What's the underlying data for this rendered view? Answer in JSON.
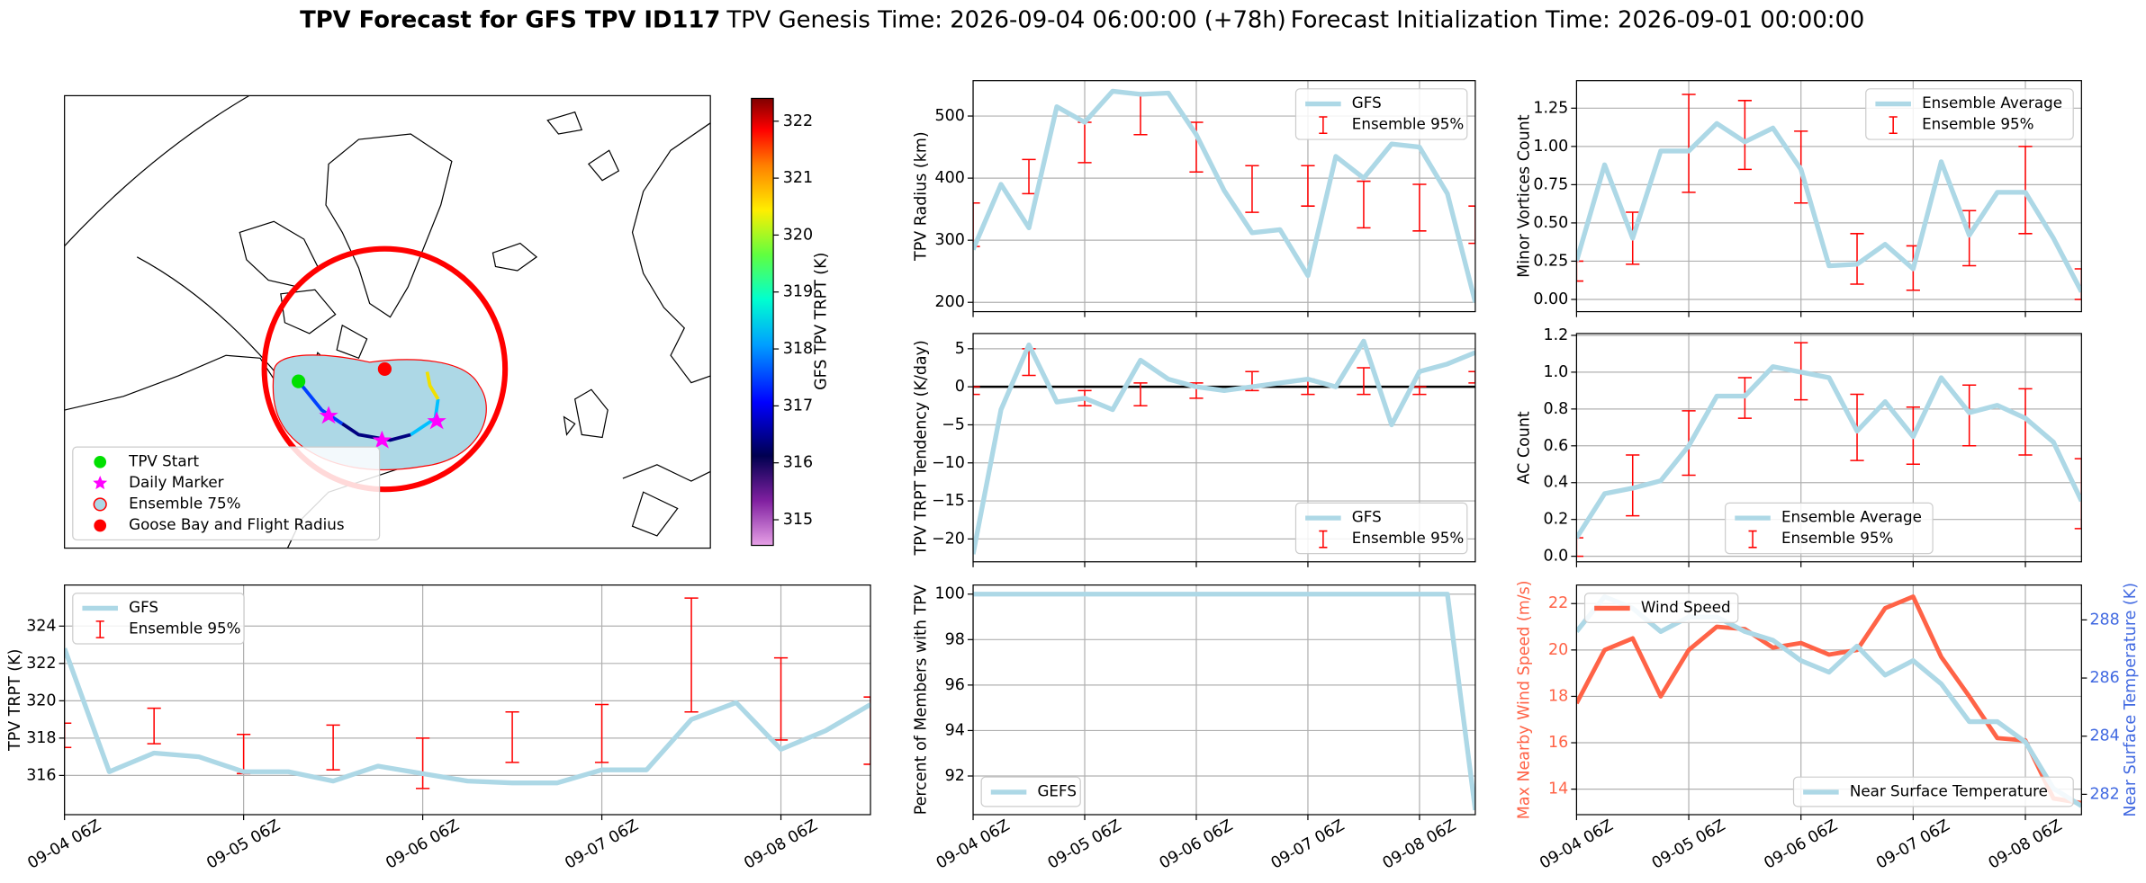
{
  "header": {
    "title": "TPV Forecast for GFS TPV ID117",
    "genesis": "TPV Genesis Time: 2026-09-04 06:00:00 (+78h)",
    "init": "Forecast Initialization Time: 2026-09-01 00:00:00"
  },
  "chart_data": [
    {
      "type": "map",
      "legend_corner": "lower left",
      "legend": [
        {
          "name": "TPV Start",
          "color": "#00e000",
          "marker": "circle"
        },
        {
          "name": "Daily Marker",
          "color": "#ff00ff",
          "marker": "star"
        },
        {
          "name": "Ensemble 75%",
          "color": "#add8e6",
          "edgecolor": "#ff0000",
          "marker": "circle"
        },
        {
          "name": "Goose Bay and Flight Radius",
          "color": "#ff0000",
          "marker": "circle"
        }
      ],
      "colorbar": {
        "label": "GFS TPV TRPT (K)",
        "lim": [
          314.55,
          322.4
        ],
        "ticks": [
          315,
          316,
          317,
          318,
          319,
          320,
          321,
          322
        ]
      }
    },
    {
      "type": "line",
      "ylabel": "TPV Radius (km)",
      "ylim": [
        185,
        557
      ],
      "yticks": [
        200,
        300,
        400,
        500
      ],
      "grid": true,
      "legend": "upper right",
      "series": [
        {
          "name": "GFS",
          "color": "#add8e6",
          "values": [
            285,
            390,
            320,
            515,
            490,
            540,
            535,
            537,
            470,
            380,
            312,
            317,
            243,
            435,
            400,
            455,
            450,
            375,
            200
          ]
        }
      ],
      "errorbars": {
        "name": "Ensemble 95%",
        "color": "#ff0000",
        "low": [
          290,
          null,
          375,
          null,
          425,
          null,
          470,
          null,
          410,
          null,
          345,
          null,
          355,
          null,
          320,
          null,
          315,
          null,
          295
        ],
        "high": [
          360,
          null,
          430,
          null,
          490,
          null,
          535,
          null,
          490,
          null,
          420,
          null,
          420,
          null,
          395,
          null,
          390,
          null,
          355
        ]
      }
    },
    {
      "type": "line",
      "ylabel": "Minor Vortices Count",
      "ylim": [
        -0.08,
        1.43
      ],
      "yticks": [
        {
          "value": 0,
          "label": "0.00"
        },
        0.25,
        {
          "value": 0.5,
          "label": "0.50"
        },
        0.75,
        {
          "value": 1,
          "label": "1.00"
        },
        1.25
      ],
      "grid": true,
      "legend": "upper right",
      "series": [
        {
          "name": "Ensemble Average",
          "color": "#add8e6",
          "values": [
            0.25,
            0.88,
            0.4,
            0.97,
            0.97,
            1.15,
            1.03,
            1.12,
            0.85,
            0.22,
            0.23,
            0.36,
            0.2,
            0.9,
            0.42,
            0.7,
            0.7,
            0.4,
            0.05
          ]
        }
      ],
      "errorbars": {
        "name": "Ensemble 95%",
        "color": "#ff0000",
        "low": [
          0.12,
          null,
          0.23,
          null,
          0.7,
          null,
          0.85,
          null,
          0.63,
          null,
          0.1,
          null,
          0.06,
          null,
          0.22,
          null,
          0.43,
          null,
          0.0
        ],
        "high": [
          0.25,
          null,
          0.57,
          null,
          1.34,
          null,
          1.3,
          null,
          1.1,
          null,
          0.43,
          null,
          0.35,
          null,
          0.58,
          null,
          1.0,
          null,
          0.2
        ]
      }
    },
    {
      "type": "line",
      "ylabel": "TPV TRPT Tendency (K/day)",
      "ylim": [
        -23,
        7
      ],
      "yticks": [
        {
          "value": -20,
          "label": "−20"
        },
        {
          "value": -15,
          "label": "−15"
        },
        {
          "value": -10,
          "label": "−10"
        },
        {
          "value": -5,
          "label": "−5"
        },
        0,
        5
      ],
      "grid": true,
      "legend": "lower right",
      "hline": 0,
      "series": [
        {
          "name": "GFS",
          "color": "#add8e6",
          "values": [
            -22,
            -3,
            5.5,
            -2,
            -1.5,
            -3,
            3.5,
            1,
            0,
            -0.5,
            0,
            0.5,
            1,
            0,
            6,
            -5,
            2,
            3,
            4.5
          ]
        }
      ],
      "errorbars": {
        "name": "Ensemble 95%",
        "color": "#ff0000",
        "low": [
          -1,
          null,
          1.5,
          null,
          -2.5,
          null,
          -2.5,
          null,
          -1.5,
          null,
          -0.5,
          null,
          -1,
          null,
          -1,
          null,
          -1,
          null,
          0.5
        ],
        "high": [
          0,
          null,
          5,
          null,
          -0.5,
          null,
          0.5,
          null,
          0.5,
          null,
          2,
          null,
          1,
          null,
          2.5,
          null,
          0,
          null,
          2
        ]
      }
    },
    {
      "type": "line",
      "ylabel": "AC Count",
      "ylim": [
        -0.03,
        1.21
      ],
      "yticks": [
        {
          "value": 0,
          "label": "0.0"
        },
        0.2,
        0.4,
        0.6,
        0.8,
        {
          "value": 1,
          "label": "1.0"
        },
        1.2
      ],
      "grid": true,
      "legend": "lower center",
      "series": [
        {
          "name": "Ensemble Average",
          "color": "#add8e6",
          "values": [
            0.1,
            0.34,
            0.37,
            0.41,
            0.6,
            0.87,
            0.87,
            1.03,
            1.0,
            0.97,
            0.68,
            0.84,
            0.65,
            0.97,
            0.78,
            0.82,
            0.75,
            0.62,
            0.3
          ]
        }
      ],
      "errorbars": {
        "name": "Ensemble 95%",
        "color": "#ff0000",
        "low": [
          0.0,
          null,
          0.22,
          null,
          0.44,
          null,
          0.75,
          null,
          0.85,
          null,
          0.52,
          null,
          0.5,
          null,
          0.6,
          null,
          0.55,
          null,
          0.15
        ],
        "high": [
          0.1,
          null,
          0.55,
          null,
          0.79,
          null,
          0.97,
          null,
          1.16,
          null,
          0.88,
          null,
          0.81,
          null,
          0.93,
          null,
          0.91,
          null,
          0.53
        ]
      }
    },
    {
      "type": "line",
      "ylabel": "TPV TRPT (K)",
      "ylim": [
        313.9,
        326.2
      ],
      "yticks": [
        316,
        318,
        320,
        322,
        324
      ],
      "grid": true,
      "legend": "upper left",
      "categories": [
        "09-04 06Z",
        null,
        null,
        null,
        "09-05 06Z",
        null,
        null,
        null,
        "09-06 06Z",
        null,
        null,
        null,
        "09-07 06Z",
        null,
        null,
        null,
        "09-08 06Z",
        null,
        null
      ],
      "series": [
        {
          "name": "GFS",
          "color": "#add8e6",
          "values": [
            322.8,
            316.2,
            317.2,
            317,
            316.2,
            316.2,
            315.7,
            316.5,
            316.1,
            315.7,
            315.6,
            315.6,
            316.3,
            316.3,
            319,
            319.9,
            317.4,
            318.4,
            319.8
          ]
        }
      ],
      "errorbars": {
        "name": "Ensemble 95%",
        "color": "#ff0000",
        "low": [
          317.5,
          null,
          317.7,
          null,
          316.1,
          null,
          316.3,
          null,
          315.3,
          null,
          316.7,
          null,
          316.7,
          null,
          319.4,
          null,
          317.9,
          null,
          316.6
        ],
        "high": [
          318.8,
          null,
          319.6,
          null,
          318.2,
          null,
          318.7,
          null,
          318,
          null,
          319.4,
          null,
          319.8,
          null,
          325.5,
          null,
          322.3,
          null,
          320.2
        ]
      }
    },
    {
      "type": "line",
      "ylabel": "Percent of Members with TPV",
      "ylim": [
        90.3,
        100.4
      ],
      "yticks": [
        92,
        94,
        96,
        98,
        100
      ],
      "grid": true,
      "legend": "lower left",
      "categories": [
        "09-04 06Z",
        null,
        null,
        null,
        "09-05 06Z",
        null,
        null,
        null,
        "09-06 06Z",
        null,
        null,
        null,
        "09-07 06Z",
        null,
        null,
        null,
        "09-08 06Z",
        null,
        null
      ],
      "series": [
        {
          "name": "GEFS",
          "color": "#add8e6",
          "values": [
            100,
            100,
            100,
            100,
            100,
            100,
            100,
            100,
            100,
            100,
            100,
            100,
            100,
            100,
            100,
            100,
            100,
            100,
            90.5
          ]
        }
      ]
    },
    {
      "type": "line",
      "ylabel": "Max Nearby Wind Speed (m/s)",
      "y2label": "Near Surface Temperature (K)",
      "ycolor": "#ff6347",
      "y2color": "#4169e1",
      "ylim": [
        12.9,
        22.8
      ],
      "yticks": [
        14,
        16,
        18,
        20,
        22
      ],
      "y2lim": [
        281.3,
        289.2
      ],
      "y2ticks": [
        282,
        284,
        286,
        288
      ],
      "grid": true,
      "categories": [
        "09-04 06Z",
        null,
        null,
        null,
        "09-05 06Z",
        null,
        null,
        null,
        "09-06 06Z",
        null,
        null,
        null,
        "09-07 06Z",
        null,
        null,
        null,
        "09-08 06Z",
        null,
        null
      ],
      "series": [
        {
          "name": "Wind Speed",
          "color": "#ff6347",
          "legend": "upper left",
          "values": [
            17.7,
            20,
            20.5,
            18,
            20,
            21,
            20.9,
            20.1,
            20.3,
            19.8,
            20,
            21.8,
            22.3,
            19.7,
            18,
            16.2,
            16.1,
            13.6,
            13.4
          ]
        },
        {
          "name": "Near Surface Temperature",
          "color": "#add8e6",
          "legend": "lower right",
          "axis": "y2",
          "values": [
            287.6,
            288.8,
            288.4,
            287.6,
            288.1,
            288.1,
            287.6,
            287.3,
            286.6,
            286.2,
            287.1,
            286.1,
            286.6,
            285.8,
            284.5,
            284.5,
            283.8,
            282.2,
            281.6
          ]
        }
      ]
    }
  ]
}
